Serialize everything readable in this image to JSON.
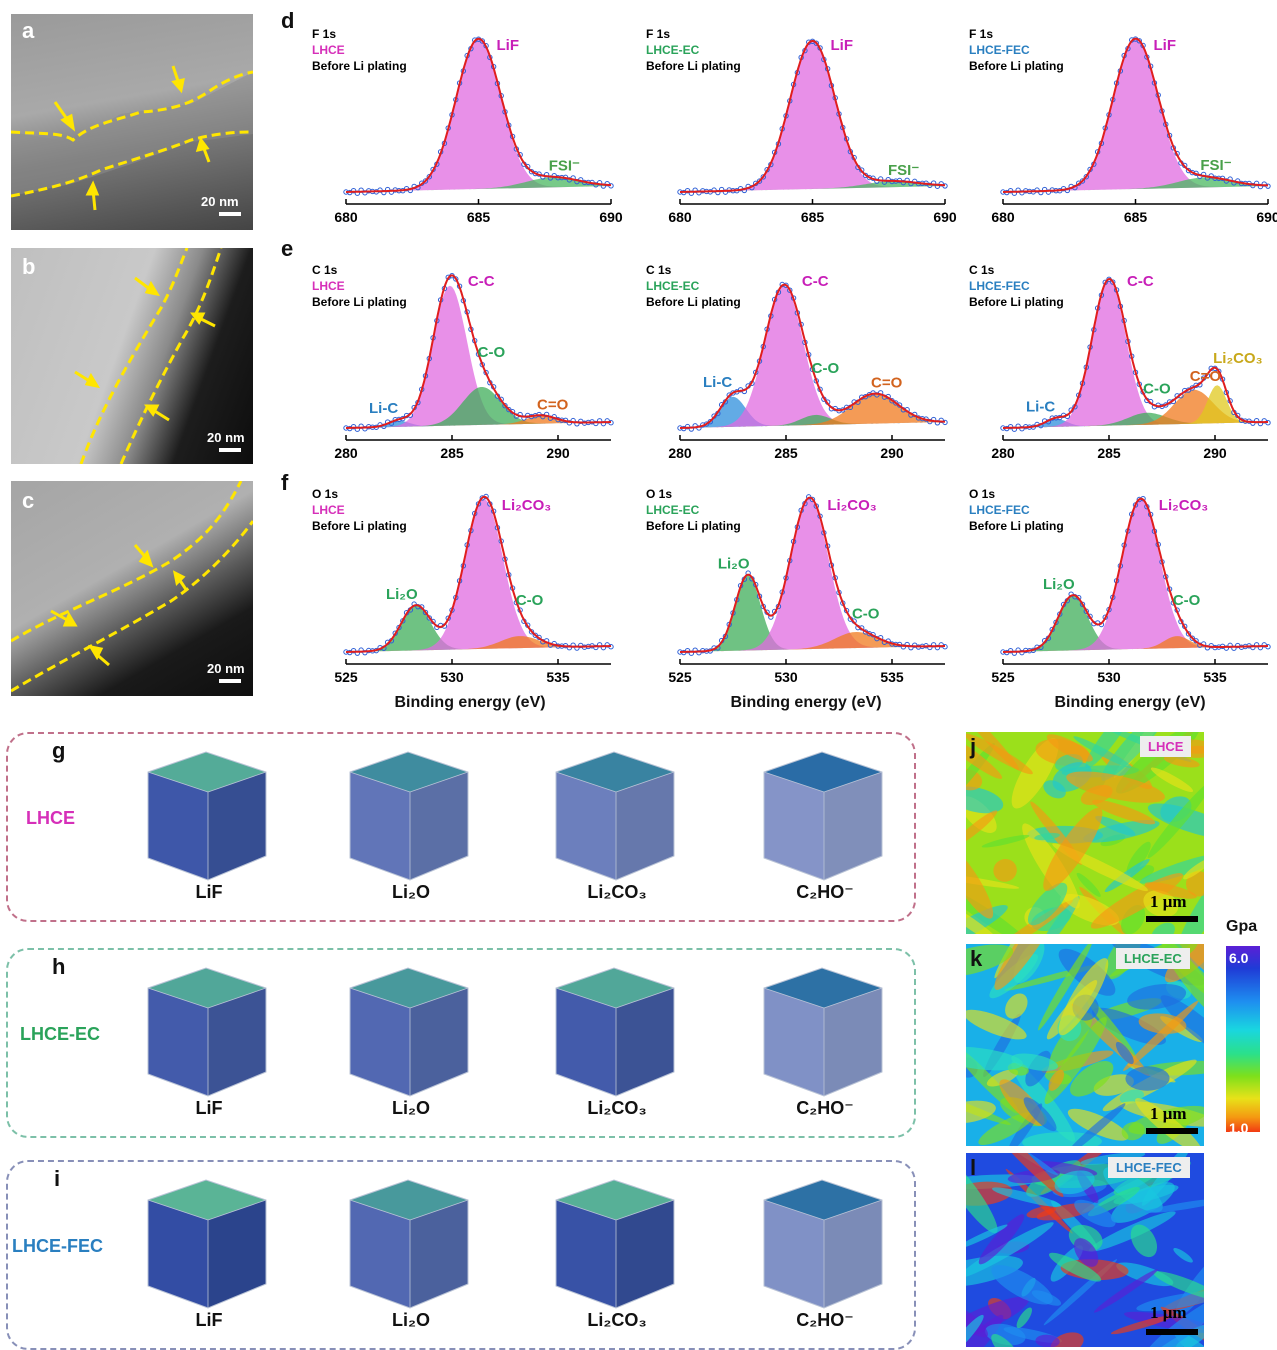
{
  "panels": {
    "a": "a",
    "b": "b",
    "c": "c",
    "d": "d",
    "e": "e",
    "f": "f",
    "g": "g",
    "h": "h",
    "i": "i",
    "j": "j",
    "k": "k",
    "l": "l"
  },
  "tem": {
    "scale_label": "20 nm"
  },
  "xps": {
    "xlabel": "Binding energy (eV)",
    "before_label": "Before Li plating",
    "electrolytes": [
      "LHCE",
      "LHCE-EC",
      "LHCE-FEC"
    ],
    "electrolyte_colors": [
      "#d62fb9",
      "#2aa35a",
      "#2a7fc0"
    ],
    "rows": [
      {
        "core": "F 1s",
        "ticks": [
          "680",
          "685",
          "690"
        ],
        "peaks_text": [
          "LiF",
          "FSI⁻"
        ]
      },
      {
        "core": "C 1s",
        "ticks": [
          "280",
          "285",
          "290"
        ],
        "peaks_text": [
          "Li-C",
          "C-C",
          "C-O",
          "C=O",
          "Li₂CO₃"
        ]
      },
      {
        "core": "O 1s",
        "ticks": [
          "525",
          "530",
          "535"
        ],
        "peaks_text": [
          "Li₂O",
          "Li₂CO₃",
          "C-O"
        ]
      }
    ]
  },
  "tof": {
    "rows": [
      "LHCE",
      "LHCE-EC",
      "LHCE-FEC"
    ],
    "row_colors": [
      "#d62fb9",
      "#2aa35a",
      "#2a7fc0"
    ],
    "box_colors": [
      "#c0708a",
      "#7cc0a8",
      "#8890b8"
    ],
    "species": [
      "LiF",
      "Li₂O",
      "Li₂CO₃",
      "C₂HO⁻"
    ]
  },
  "afm": {
    "tags": [
      "LHCE",
      "LHCE-EC",
      "LHCE-FEC"
    ],
    "tag_colors": [
      "#d62fb9",
      "#2aa35a",
      "#2a7fc0"
    ],
    "scale_label": "1 μm",
    "colorbar": {
      "unit": "Gpa",
      "max": "6.0",
      "min": "1.0"
    }
  }
}
